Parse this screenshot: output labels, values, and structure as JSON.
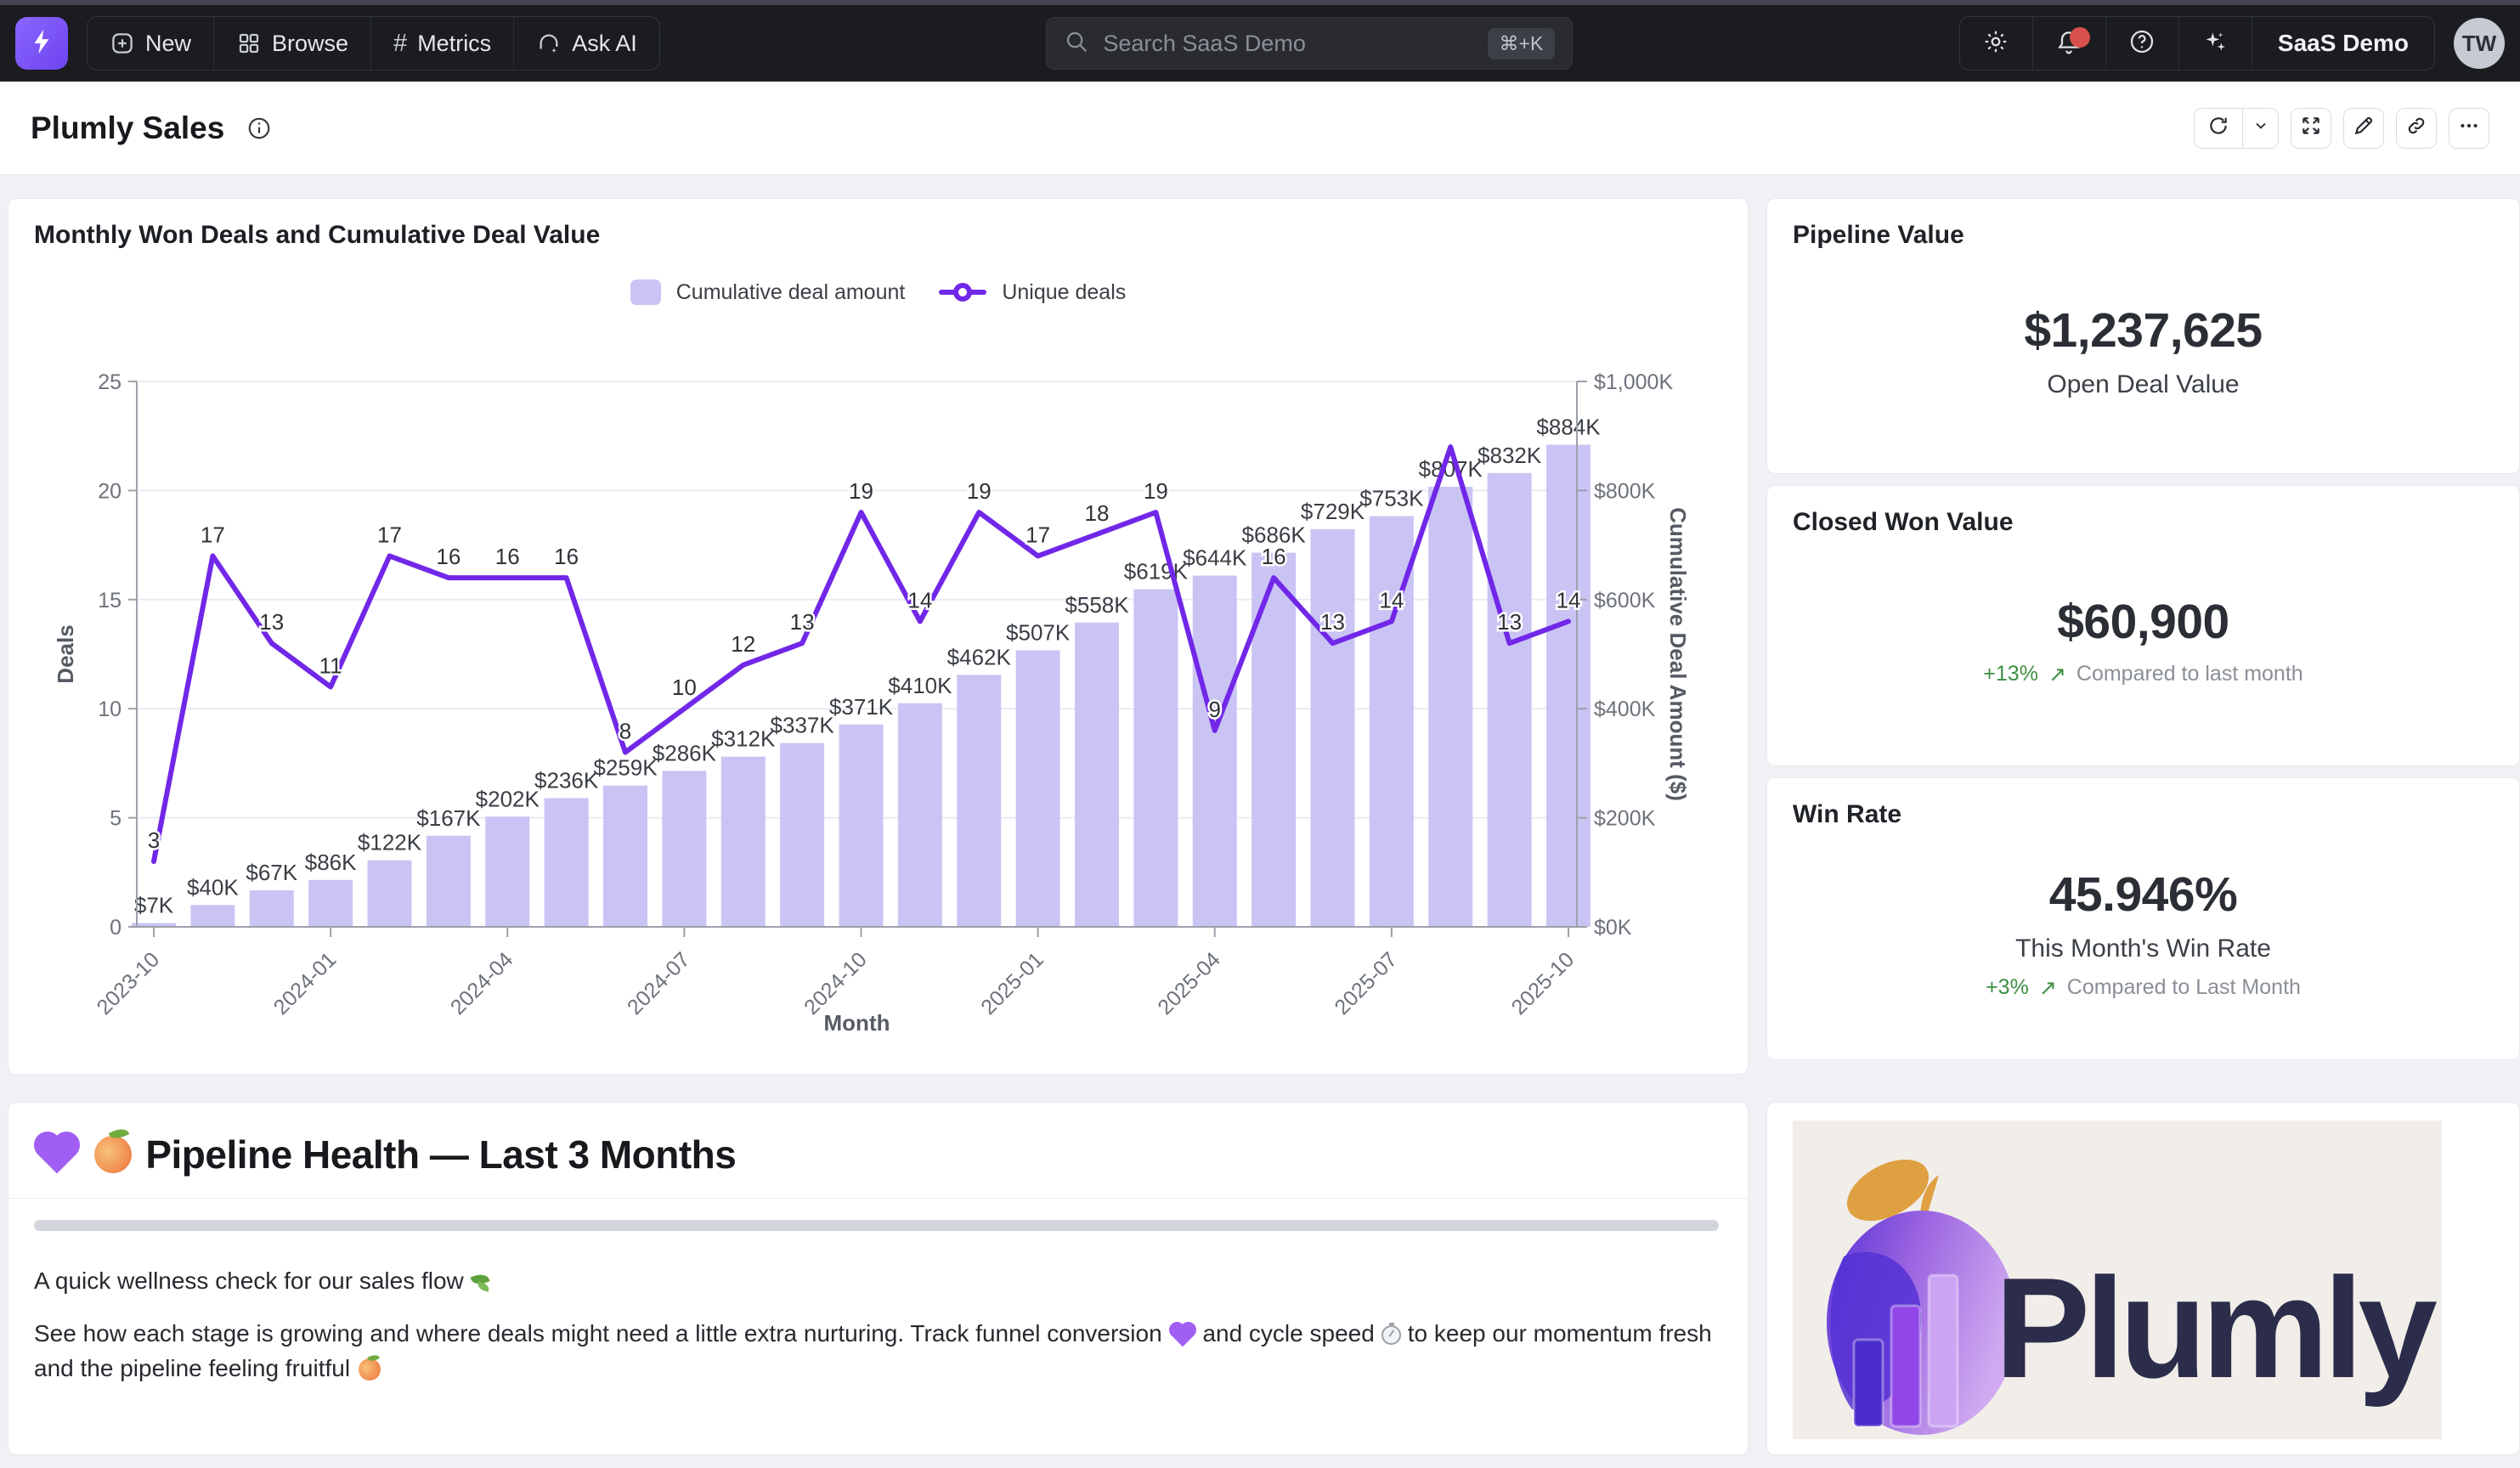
{
  "topbar": {
    "nav": {
      "new": "New",
      "browse": "Browse",
      "metrics": "Metrics",
      "ask_ai": "Ask AI"
    },
    "search": {
      "placeholder": "Search SaaS Demo",
      "shortcut": "⌘+K"
    },
    "workspace": "SaaS Demo",
    "avatar_initials": "TW"
  },
  "page": {
    "title": "Plumly Sales"
  },
  "chart_card": {
    "title": "Monthly Won Deals and Cumulative Deal Value",
    "legend": {
      "bar": "Cumulative deal amount",
      "line": "Unique deals"
    }
  },
  "chart_data": {
    "type": "bar+line dual-axis combo",
    "x": [
      "2023-10",
      "2023-11",
      "2023-12",
      "2024-01",
      "2024-02",
      "2024-03",
      "2024-04",
      "2024-05",
      "2024-06",
      "2024-07",
      "2024-08",
      "2024-09",
      "2024-10",
      "2024-11",
      "2024-12",
      "2025-01",
      "2025-02",
      "2025-03",
      "2025-04",
      "2025-05",
      "2025-06",
      "2025-07",
      "2025-08",
      "2025-09",
      "2025-10"
    ],
    "x_ticks_shown": [
      "2023-10",
      "2024-01",
      "2024-04",
      "2024-07",
      "2024-10",
      "2025-01",
      "2025-04",
      "2025-07",
      "2025-10"
    ],
    "series": [
      {
        "name": "Cumulative deal amount",
        "type": "bar",
        "axis": "right",
        "color": "#cac4f5",
        "values_k_usd": [
          7,
          40,
          67,
          86,
          122,
          167,
          202,
          236,
          259,
          286,
          312,
          337,
          371,
          410,
          462,
          507,
          558,
          619,
          644,
          686,
          729,
          753,
          807,
          832,
          884
        ]
      },
      {
        "name": "Unique deals",
        "type": "line",
        "axis": "left",
        "color": "#7127e8",
        "values": [
          3,
          17,
          13,
          11,
          17,
          16,
          16,
          16,
          8,
          10,
          12,
          13,
          19,
          14,
          19,
          17,
          18,
          19,
          9,
          16,
          13,
          14,
          22,
          13,
          14
        ],
        "hidden_label_index": 22
      }
    ],
    "left_axis": {
      "label": "Deals",
      "min": 0,
      "max": 25,
      "ticks": [
        0,
        5,
        10,
        15,
        20,
        25
      ]
    },
    "right_axis": {
      "label": "Cumulative Deal Amount ($)",
      "tick_labels": [
        "$0K",
        "$200K",
        "$400K",
        "$600K",
        "$800K",
        "$1,000K"
      ]
    },
    "xlabel": "Month",
    "grid": "horizontal"
  },
  "kpis": {
    "pipeline": {
      "title": "Pipeline Value",
      "value": "$1,237,625",
      "sub": "Open Deal Value"
    },
    "closed_won": {
      "title": "Closed Won Value",
      "value": "$60,900",
      "delta": "+13%",
      "arrow": "↗",
      "note": "Compared to last month"
    },
    "win_rate": {
      "title": "Win Rate",
      "value": "45.946%",
      "sub": "This Month's Win Rate",
      "delta": "+3%",
      "arrow": "↗",
      "note": "Compared to Last Month"
    }
  },
  "section": {
    "heading": "Pipeline Health — Last 3 Months",
    "p1": "A quick wellness check for our sales flow",
    "p2a": "See how each stage is growing and where deals might need a little extra nurturing. Track funnel conversion",
    "p2b": "and cycle speed",
    "p2c": "to keep our momentum fresh and the pipeline feeling fruitful"
  },
  "logo": {
    "brand": "Plumly"
  }
}
